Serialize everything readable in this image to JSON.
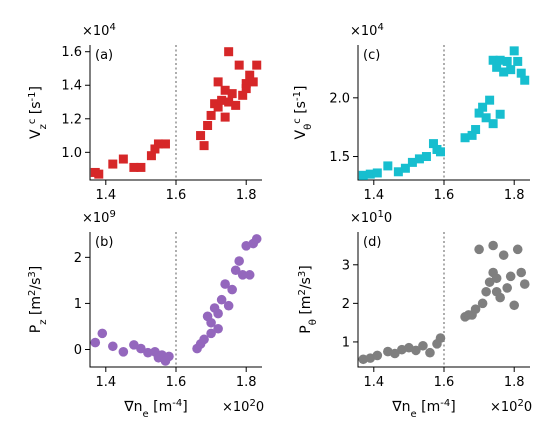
{
  "colors": {
    "a": "#d62728",
    "b": "#9467bd",
    "c": "#17becf",
    "d": "#7f7f7f",
    "threshold_line": "#777777"
  },
  "x_common": {
    "label": "∇n_e [m^{-4}]",
    "multiplier": "×10^20",
    "xlim": [
      1.355,
      1.845
    ],
    "ticks": [
      1.4,
      1.6,
      1.8
    ],
    "tick_labels": [
      "1.4",
      "1.6",
      "1.8"
    ],
    "threshold_x": 1.6
  },
  "chart_data": [
    {
      "panel": "a",
      "type": "scatter",
      "marker": "square",
      "panel_label": "(a)",
      "ylabel": "V_z^c [s^{-1}]",
      "y_multiplier": "×10^4",
      "ylim": [
        0.835,
        1.64
      ],
      "yticks": [
        1.0,
        1.2,
        1.4,
        1.6
      ],
      "ytick_labels": [
        "1.0",
        "1.2",
        "1.4",
        "1.6"
      ],
      "x": [
        1.37,
        1.38,
        1.42,
        1.45,
        1.48,
        1.5,
        1.53,
        1.54,
        1.55,
        1.57,
        1.67,
        1.68,
        1.69,
        1.7,
        1.71,
        1.72,
        1.72,
        1.73,
        1.74,
        1.74,
        1.75,
        1.75,
        1.76,
        1.77,
        1.78,
        1.79,
        1.8,
        1.8,
        1.81,
        1.82,
        1.83
      ],
      "y": [
        0.88,
        0.87,
        0.93,
        0.96,
        0.91,
        0.91,
        0.98,
        1.02,
        1.05,
        1.05,
        1.1,
        1.04,
        1.16,
        1.22,
        1.29,
        1.27,
        1.42,
        1.31,
        1.37,
        1.21,
        1.6,
        1.3,
        1.35,
        1.28,
        1.52,
        1.34,
        1.41,
        1.38,
        1.46,
        1.42,
        1.52
      ]
    },
    {
      "panel": "b",
      "type": "scatter",
      "marker": "circle",
      "panel_label": "(b)",
      "ylabel": "P_z [m^2/s^3]",
      "y_multiplier": "×10^9",
      "ylim": [
        -0.38,
        2.55
      ],
      "yticks": [
        0,
        1,
        2
      ],
      "ytick_labels": [
        "0",
        "1",
        "2"
      ],
      "x": [
        1.37,
        1.39,
        1.42,
        1.45,
        1.48,
        1.5,
        1.52,
        1.54,
        1.55,
        1.56,
        1.57,
        1.58,
        1.66,
        1.67,
        1.68,
        1.69,
        1.7,
        1.7,
        1.71,
        1.72,
        1.72,
        1.73,
        1.74,
        1.75,
        1.76,
        1.77,
        1.78,
        1.79,
        1.8,
        1.81,
        1.82,
        1.83
      ],
      "y": [
        0.15,
        0.35,
        0.07,
        -0.05,
        0.1,
        0.02,
        -0.07,
        -0.05,
        -0.18,
        -0.12,
        -0.25,
        -0.15,
        0.02,
        0.12,
        0.22,
        0.72,
        0.58,
        0.35,
        0.9,
        0.45,
        0.78,
        1.08,
        1.42,
        0.95,
        1.3,
        1.72,
        1.92,
        1.62,
        2.25,
        1.62,
        2.3,
        2.4
      ]
    },
    {
      "panel": "c",
      "type": "scatter",
      "marker": "square",
      "panel_label": "(c)",
      "ylabel": "V_θ^c [s^{-1}]",
      "y_multiplier": "×10^4",
      "ylim": [
        1.3,
        2.45
      ],
      "yticks": [
        1.5,
        2.0
      ],
      "ytick_labels": [
        "1.5",
        "2.0"
      ],
      "x": [
        1.37,
        1.39,
        1.41,
        1.44,
        1.47,
        1.49,
        1.51,
        1.53,
        1.55,
        1.57,
        1.58,
        1.59,
        1.66,
        1.68,
        1.69,
        1.7,
        1.71,
        1.72,
        1.73,
        1.74,
        1.74,
        1.75,
        1.76,
        1.76,
        1.77,
        1.78,
        1.79,
        1.8,
        1.81,
        1.82,
        1.83
      ],
      "y": [
        1.34,
        1.35,
        1.36,
        1.42,
        1.37,
        1.4,
        1.45,
        1.48,
        1.5,
        1.61,
        1.56,
        1.54,
        1.66,
        1.68,
        1.73,
        1.87,
        1.92,
        1.83,
        1.98,
        2.32,
        1.78,
        2.26,
        2.32,
        1.86,
        2.22,
        2.31,
        2.24,
        2.4,
        2.31,
        2.21,
        2.15
      ]
    },
    {
      "panel": "d",
      "type": "scatter",
      "marker": "circle",
      "panel_label": "(d)",
      "ylabel": "P_θ [m^2/s^3]",
      "y_multiplier": "×10^10",
      "ylim": [
        0.35,
        3.85
      ],
      "yticks": [
        1,
        2,
        3
      ],
      "ytick_labels": [
        "1",
        "2",
        "3"
      ],
      "x": [
        1.37,
        1.39,
        1.41,
        1.44,
        1.46,
        1.48,
        1.5,
        1.52,
        1.54,
        1.56,
        1.58,
        1.59,
        1.66,
        1.67,
        1.68,
        1.69,
        1.7,
        1.71,
        1.72,
        1.73,
        1.74,
        1.74,
        1.75,
        1.75,
        1.76,
        1.77,
        1.78,
        1.79,
        1.8,
        1.81,
        1.82,
        1.83
      ],
      "y": [
        0.55,
        0.58,
        0.65,
        0.75,
        0.7,
        0.8,
        0.85,
        0.78,
        0.9,
        0.72,
        0.95,
        1.1,
        1.65,
        1.7,
        1.7,
        1.85,
        3.4,
        2.0,
        2.3,
        2.55,
        2.8,
        3.5,
        2.3,
        2.65,
        2.15,
        3.25,
        2.4,
        2.7,
        1.95,
        3.4,
        2.8,
        2.5
      ]
    }
  ]
}
